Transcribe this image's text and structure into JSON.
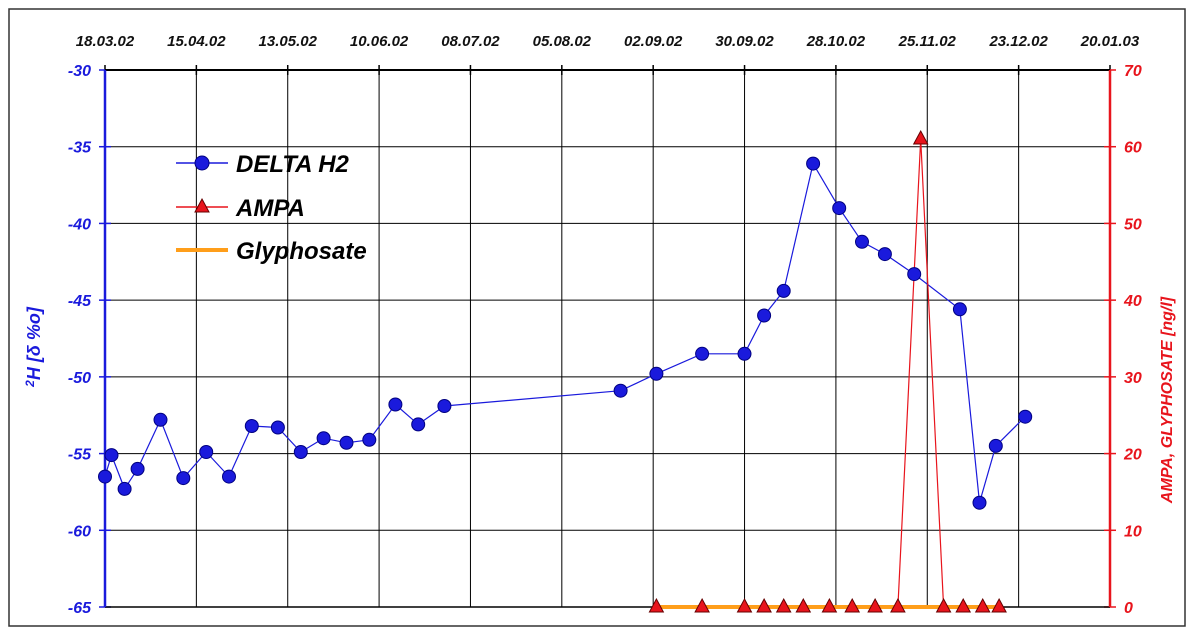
{
  "chart_data": {
    "type": "line",
    "x_type": "date",
    "x_ticks": [
      "18.03.02",
      "15.04.02",
      "13.05.02",
      "10.06.02",
      "08.07.02",
      "05.08.02",
      "02.09.02",
      "30.09.02",
      "28.10.02",
      "25.11.02",
      "23.12.02",
      "20.01.03"
    ],
    "xlim": [
      "18.03.02",
      "20.01.03"
    ],
    "y_left": {
      "label_sup": "2",
      "label_main": "H [",
      "label_delta": "δ",
      "label_end": " %o]",
      "lim": [
        -65,
        -30
      ],
      "ticks": [
        -30,
        -35,
        -40,
        -45,
        -50,
        -55,
        -60,
        -65
      ],
      "color": "#1a1adc"
    },
    "y_right": {
      "label": "AMPA, GLYPHOSATE [ng/l]",
      "lim": [
        0,
        70
      ],
      "ticks": [
        0,
        10,
        20,
        30,
        40,
        50,
        60,
        70
      ],
      "color": "#e8141c"
    },
    "grid": true,
    "legend": "top-left",
    "series": [
      {
        "name": "DELTA H2",
        "axis": "left",
        "color": "#1a1adc",
        "marker": "circle",
        "points": [
          [
            "18.03.02",
            -56.5
          ],
          [
            "20.03.02",
            -55.1
          ],
          [
            "24.03.02",
            -57.3
          ],
          [
            "28.03.02",
            -56.0
          ],
          [
            "04.04.02",
            -52.8
          ],
          [
            "11.04.02",
            -56.6
          ],
          [
            "18.04.02",
            -54.9
          ],
          [
            "25.04.02",
            -56.5
          ],
          [
            "02.05.02",
            -53.2
          ],
          [
            "10.05.02",
            -53.3
          ],
          [
            "17.05.02",
            -54.9
          ],
          [
            "24.05.02",
            -54.0
          ],
          [
            "31.05.02",
            -54.3
          ],
          [
            "07.06.02",
            -54.1
          ],
          [
            "15.06.02",
            -51.8
          ],
          [
            "22.06.02",
            -53.1
          ],
          [
            "30.06.02",
            -51.9
          ],
          [
            "23.08.02",
            -50.9
          ],
          [
            "03.09.02",
            -49.8
          ],
          [
            "17.09.02",
            -48.5
          ],
          [
            "30.09.02",
            -48.5
          ],
          [
            "06.10.02",
            -46.0
          ],
          [
            "12.10.02",
            -44.4
          ],
          [
            "21.10.02",
            -36.1
          ],
          [
            "29.10.02",
            -39.0
          ],
          [
            "05.11.02",
            -41.2
          ],
          [
            "12.11.02",
            -42.0
          ],
          [
            "21.11.02",
            -43.3
          ],
          [
            "05.12.02",
            -45.6
          ],
          [
            "11.12.02",
            -58.2
          ],
          [
            "16.12.02",
            -54.5
          ],
          [
            "25.12.02",
            -52.6
          ]
        ]
      },
      {
        "name": "AMPA",
        "axis": "right",
        "color": "#e8141c",
        "marker": "triangle",
        "points": [
          [
            "03.09.02",
            0
          ],
          [
            "17.09.02",
            0
          ],
          [
            "30.09.02",
            0
          ],
          [
            "06.10.02",
            0
          ],
          [
            "12.10.02",
            0
          ],
          [
            "18.10.02",
            0
          ],
          [
            "26.10.02",
            0
          ],
          [
            "02.11.02",
            0
          ],
          [
            "09.11.02",
            0
          ],
          [
            "16.11.02",
            0
          ],
          [
            "23.11.02",
            61
          ],
          [
            "30.11.02",
            0
          ],
          [
            "06.12.02",
            0
          ],
          [
            "12.12.02",
            0
          ],
          [
            "17.12.02",
            0
          ]
        ]
      },
      {
        "name": "Glyphosate",
        "axis": "right",
        "color": "#ff9e1a",
        "marker": "none",
        "points": [
          [
            "03.09.02",
            0
          ],
          [
            "17.12.02",
            0
          ]
        ]
      }
    ]
  }
}
